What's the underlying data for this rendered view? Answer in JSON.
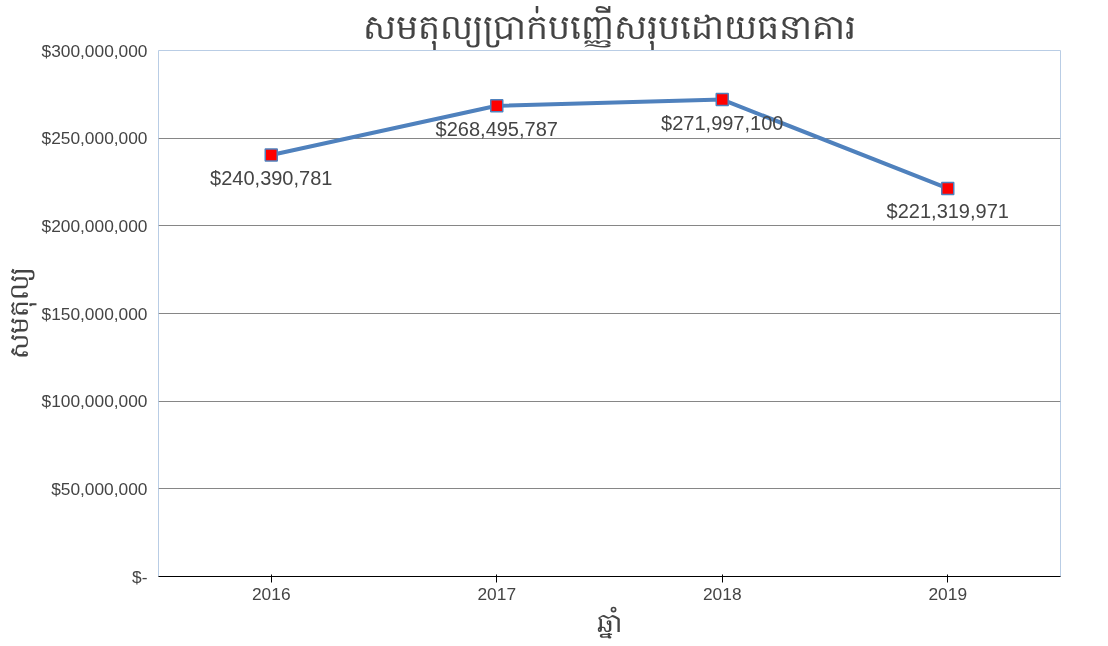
{
  "chart_data": {
    "type": "line",
    "title": "សមតុល្យប្រាក់បញ្ញើសរុបដោយធនាគារ",
    "xlabel": "ឆ្នាំ",
    "ylabel": "សមតុល្យ",
    "categories": [
      "2016",
      "2017",
      "2018",
      "2019"
    ],
    "series": [
      {
        "color": "#4f81bd",
        "values": [
          240390781,
          268495787,
          271997100,
          221319971
        ],
        "value_labels": [
          "$240,390,781",
          "$268,495,787",
          "$271,997,100",
          "$221,319,971"
        ]
      }
    ],
    "ylim": [
      0,
      300000000
    ],
    "yticks": [
      {
        "value": 0,
        "label": "$-"
      },
      {
        "value": 50000000,
        "label": "$50,000,000"
      },
      {
        "value": 100000000,
        "label": "$100,000,000"
      },
      {
        "value": 150000000,
        "label": "$150,000,000"
      },
      {
        "value": 200000000,
        "label": "$200,000,000"
      },
      {
        "value": 250000000,
        "label": "$250,000,000"
      },
      {
        "value": 300000000,
        "label": "$300,000,000"
      }
    ],
    "grid": "y",
    "marker": "square",
    "line_style": "solid"
  }
}
